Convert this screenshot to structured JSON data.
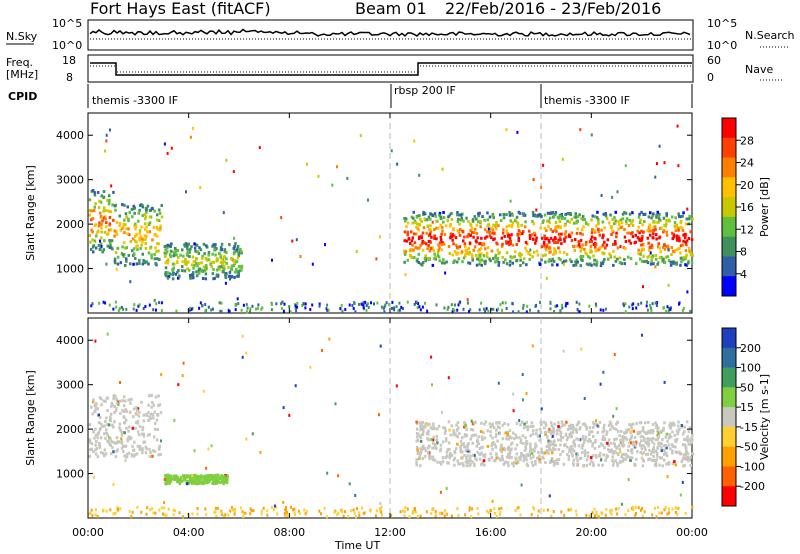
{
  "header": {
    "site": "Fort Hays East (fitACF)",
    "beam": "Beam 01",
    "dates": "22/Feb/2016 - 23/Feb/2016"
  },
  "strip1": {
    "left_label": "N.Sky",
    "right_label": "N.Search",
    "left_top": "10^5",
    "left_bot": "10^0",
    "right_top": "10^5",
    "right_bot": "10^0"
  },
  "strip2": {
    "left_label_1": "Freq.",
    "left_label_2": "[MHz]",
    "right_label": "Nave",
    "left_top": "18",
    "left_bot": "8",
    "right_top": "60",
    "right_bot": "0"
  },
  "cpid": {
    "label": "CPID",
    "segments": [
      "themis -3300 IF",
      "rbsp 200 IF",
      "themis -3300 IF"
    ]
  },
  "colors": {
    "power_scale": [
      "#0000ff",
      "#2e5fa8",
      "#3f8f5f",
      "#5fbf3f",
      "#c8c800",
      "#ffc000",
      "#ff8000",
      "#ff4000",
      "#ff0000"
    ],
    "velocity_scale": [
      "#1f3fbf",
      "#2f6f9f",
      "#3f9f5f",
      "#7fcf3f",
      "#c8c8c0",
      "#ffd030",
      "#ffa000",
      "#ff6000",
      "#ff0000"
    ],
    "ground_scatter": "#c8c8c0"
  },
  "chart_data": [
    {
      "type": "heatmap",
      "name": "power",
      "ylabel": "Slant Range [km]",
      "ylim": [
        0,
        4500
      ],
      "yticks": [
        "1000",
        "2000",
        "3000",
        "4000"
      ],
      "xticks": [
        "00:00",
        "04:00",
        "08:00",
        "12:00",
        "16:00",
        "20:00",
        "00:00"
      ],
      "xlabel": "",
      "colorbar": {
        "label": "Power [dB]",
        "ticks": [
          "4",
          "8",
          "12",
          "16",
          "20",
          "24",
          "28"
        ],
        "range": [
          0,
          30
        ]
      },
      "regions": [
        {
          "t0": 0.0,
          "t1": 1.0,
          "r0": 1400,
          "r1": 2800,
          "peak": 22
        },
        {
          "t0": 1.0,
          "t1": 2.9,
          "r0": 1100,
          "r1": 2500,
          "peak": 18
        },
        {
          "t0": 3.0,
          "t1": 6.1,
          "r0": 800,
          "r1": 1600,
          "peak": 12
        },
        {
          "t0": 12.5,
          "t1": 24.0,
          "r0": 1100,
          "r1": 2300,
          "peak": 28
        }
      ]
    },
    {
      "type": "heatmap",
      "name": "velocity",
      "ylabel": "Slant Range [km]",
      "ylim": [
        0,
        4500
      ],
      "yticks": [
        "1000",
        "2000",
        "3000",
        "4000"
      ],
      "xticks": [
        "00:00",
        "04:00",
        "08:00",
        "12:00",
        "16:00",
        "20:00",
        "00:00"
      ],
      "xlabel": "Time UT",
      "colorbar": {
        "label": "Velocity [m s-1]",
        "ticks": [
          "200",
          "100",
          "50",
          "15",
          "-15",
          "-50",
          "-100",
          "-200"
        ]
      },
      "regions": [
        {
          "t0": 0.0,
          "t1": 2.9,
          "r0": 1400,
          "r1": 2800,
          "kind": "ground"
        },
        {
          "t0": 3.0,
          "t1": 5.5,
          "r0": 800,
          "r1": 1000,
          "kind": "green"
        },
        {
          "t0": 13.0,
          "t1": 24.0,
          "r0": 1200,
          "r1": 2200,
          "kind": "ground"
        }
      ]
    }
  ]
}
